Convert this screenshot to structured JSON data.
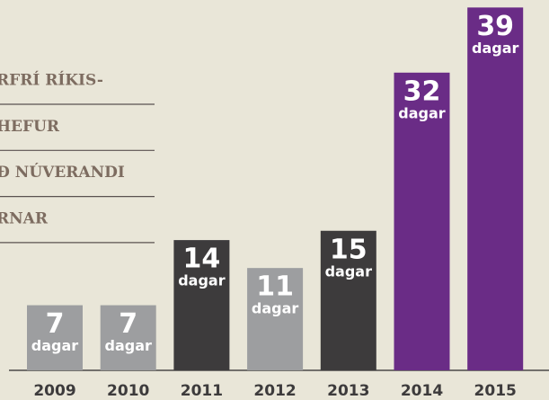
{
  "chart_data": {
    "type": "bar",
    "annotations": [
      "RFRÍ RÍKIS-",
      "HEFUR",
      "Ð NÚVERANDI",
      "RNAR"
    ],
    "categories": [
      "2009",
      "2010",
      "2011",
      "2012",
      "2013",
      "2014",
      "2015"
    ],
    "values": [
      7,
      7,
      14,
      11,
      15,
      32,
      39
    ],
    "unit": "dagar",
    "colors": [
      "#9d9ea0",
      "#9d9ea0",
      "#3d3b3c",
      "#9d9ea0",
      "#3d3b3c",
      "#6a2c86",
      "#6a2c86"
    ],
    "ylim": [
      0,
      40
    ]
  }
}
